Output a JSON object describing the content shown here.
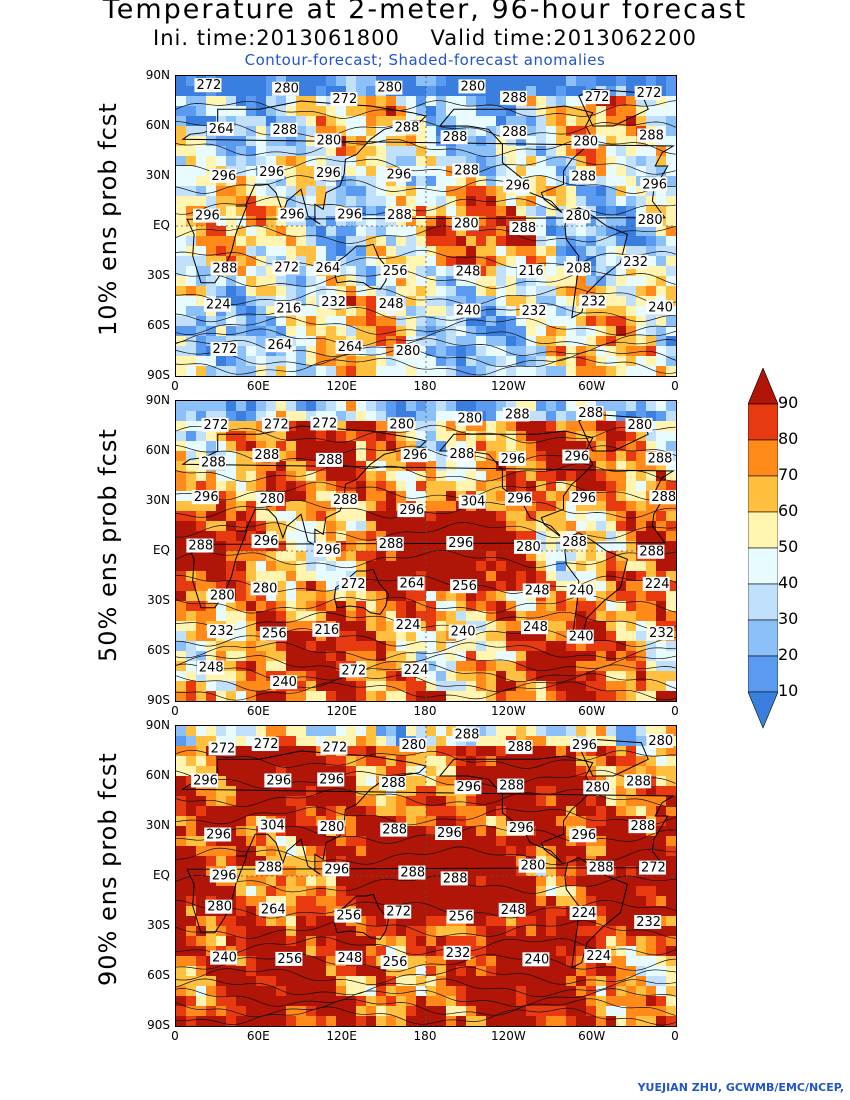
{
  "title": {
    "line1": "Temperature at 2-meter, 96-hour forecast",
    "line2": "Ini. time:2013061800    Valid time:2013062200",
    "line3": "Contour-forecast; Shaded-forecast anomalies"
  },
  "panels": [
    {
      "ylabel": "10% ens prob fcst",
      "contour_labels": [
        "272",
        "280",
        "272",
        "280",
        "280",
        "288",
        "272",
        "272",
        "264",
        "288",
        "280",
        "288",
        "288",
        "288",
        "280",
        "288",
        "296",
        "296",
        "296",
        "296",
        "288",
        "296",
        "288",
        "296",
        "296",
        "296",
        "296",
        "288",
        "280",
        "288",
        "280",
        "280",
        "288",
        "272",
        "264",
        "256",
        "248",
        "216",
        "208",
        "232",
        "224",
        "216",
        "232",
        "248",
        "240",
        "232",
        "232",
        "240",
        "272",
        "264",
        "264",
        "280"
      ]
    },
    {
      "ylabel": "50% ens prob fcst",
      "contour_labels": [
        "272",
        "272",
        "272",
        "280",
        "280",
        "288",
        "288",
        "280",
        "288",
        "288",
        "288",
        "296",
        "288",
        "296",
        "296",
        "288",
        "296",
        "280",
        "288",
        "296",
        "304",
        "296",
        "296",
        "288",
        "288",
        "296",
        "296",
        "288",
        "296",
        "280",
        "288",
        "288",
        "280",
        "280",
        "272",
        "264",
        "256",
        "248",
        "240",
        "224",
        "232",
        "256",
        "216",
        "224",
        "240",
        "248",
        "240",
        "232",
        "248",
        "240",
        "272",
        "224"
      ]
    },
    {
      "ylabel": "90% ens prob fcst",
      "contour_labels": [
        "272",
        "272",
        "272",
        "280",
        "288",
        "288",
        "296",
        "280",
        "296",
        "296",
        "296",
        "288",
        "296",
        "288",
        "280",
        "288",
        "296",
        "304",
        "280",
        "288",
        "296",
        "296",
        "296",
        "288",
        "296",
        "288",
        "296",
        "288",
        "288",
        "280",
        "288",
        "272",
        "280",
        "264",
        "256",
        "272",
        "256",
        "248",
        "224",
        "232",
        "240",
        "256",
        "248",
        "256",
        "232",
        "240",
        "224"
      ]
    }
  ],
  "axes": {
    "lat_ticks": [
      "90N",
      "60N",
      "30N",
      "EQ",
      "30S",
      "60S",
      "90S"
    ],
    "lon_ticks": [
      "0",
      "60E",
      "120E",
      "180",
      "120W",
      "60W",
      "0"
    ]
  },
  "colorbar": {
    "labels": [
      "10",
      "20",
      "30",
      "40",
      "50",
      "60",
      "70",
      "80",
      "90"
    ],
    "colors": [
      "#3a7fe0",
      "#5a9af0",
      "#8cc0f8",
      "#c0e0fc",
      "#e8fbff",
      "#fff5b0",
      "#ffc040",
      "#ff8a1a",
      "#e83a10",
      "#b01508"
    ]
  },
  "footer": "YUEJIAN ZHU, GCWMB/EMC/NCEP,"
}
